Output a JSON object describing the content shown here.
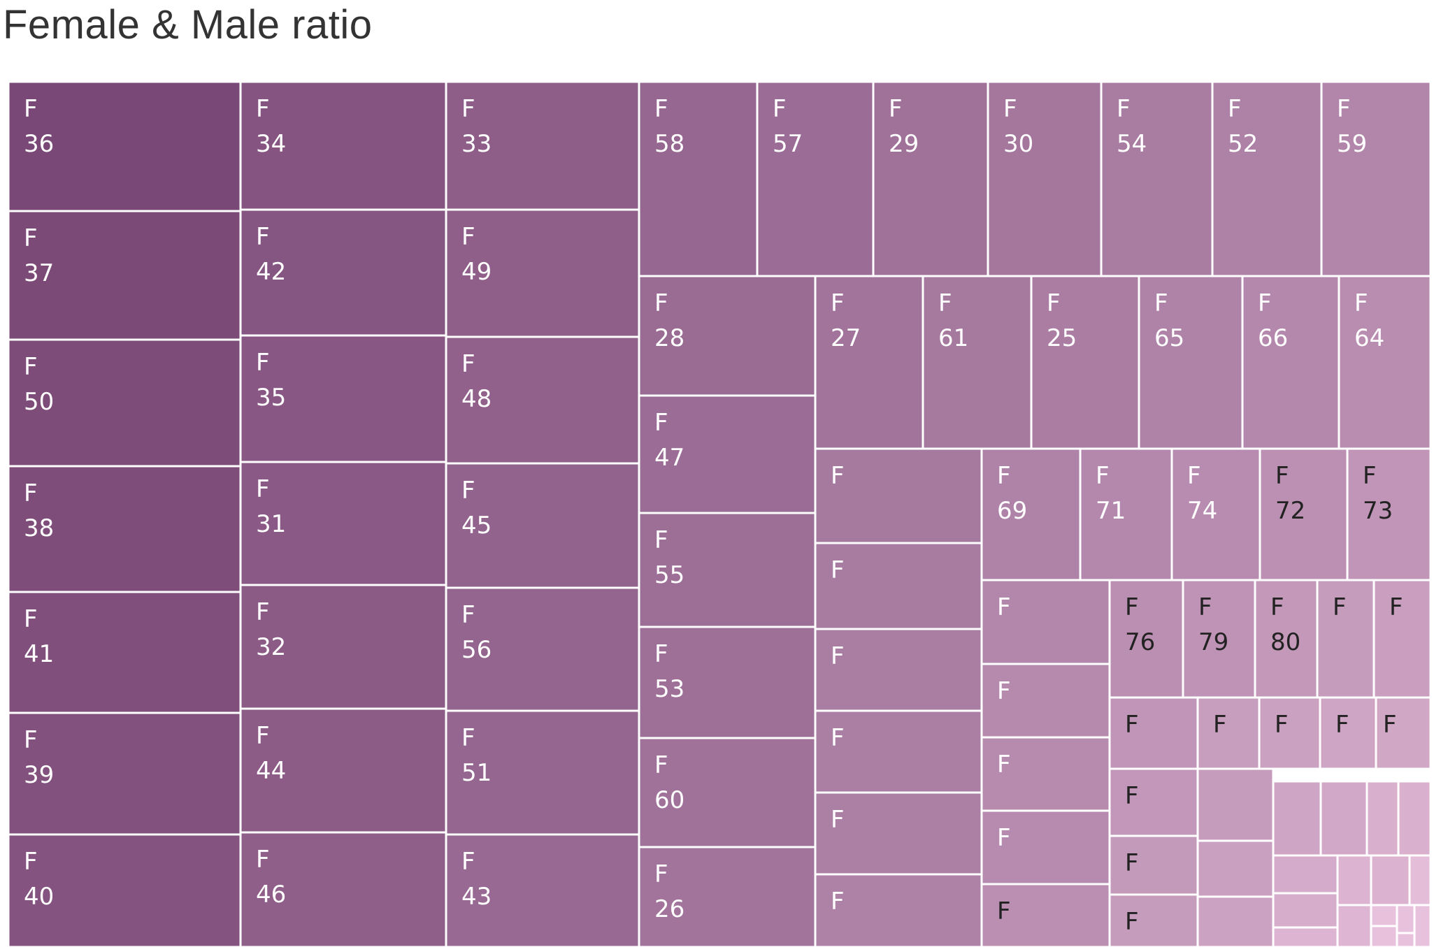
{
  "title": "Female & Male ratio",
  "chart_data": {
    "type": "treemap",
    "title": "Female & Male ratio",
    "color_scale": {
      "dark": "#7a4876",
      "light": "#e8c1dc",
      "label_dark": "#ffffff",
      "label_light": "#222222"
    },
    "cells": [
      {
        "group": "F",
        "age": 36
      },
      {
        "group": "F",
        "age": 37
      },
      {
        "group": "F",
        "age": 50
      },
      {
        "group": "F",
        "age": 38
      },
      {
        "group": "F",
        "age": 41
      },
      {
        "group": "F",
        "age": 39
      },
      {
        "group": "F",
        "age": 40
      },
      {
        "group": "F",
        "age": 34
      },
      {
        "group": "F",
        "age": 42
      },
      {
        "group": "F",
        "age": 35
      },
      {
        "group": "F",
        "age": 31
      },
      {
        "group": "F",
        "age": 32
      },
      {
        "group": "F",
        "age": 44
      },
      {
        "group": "F",
        "age": 46
      },
      {
        "group": "F",
        "age": 33
      },
      {
        "group": "F",
        "age": 49
      },
      {
        "group": "F",
        "age": 48
      },
      {
        "group": "F",
        "age": 45
      },
      {
        "group": "F",
        "age": 56
      },
      {
        "group": "F",
        "age": 51
      },
      {
        "group": "F",
        "age": 43
      },
      {
        "group": "F",
        "age": 58
      },
      {
        "group": "F",
        "age": 57
      },
      {
        "group": "F",
        "age": 29
      },
      {
        "group": "F",
        "age": 30
      },
      {
        "group": "F",
        "age": 54
      },
      {
        "group": "F",
        "age": 52
      },
      {
        "group": "F",
        "age": 59
      },
      {
        "group": "F",
        "age": 28
      },
      {
        "group": "F",
        "age": 47
      },
      {
        "group": "F",
        "age": 55
      },
      {
        "group": "F",
        "age": 53
      },
      {
        "group": "F",
        "age": 60
      },
      {
        "group": "F",
        "age": 26
      },
      {
        "group": "F",
        "age": 27
      },
      {
        "group": "F",
        "age": 61
      },
      {
        "group": "F",
        "age": 25
      },
      {
        "group": "F",
        "age": 65
      },
      {
        "group": "F",
        "age": 66
      },
      {
        "group": "F",
        "age": 64
      },
      {
        "group": "F",
        "age": null
      },
      {
        "group": "F",
        "age": null
      },
      {
        "group": "F",
        "age": null
      },
      {
        "group": "F",
        "age": null
      },
      {
        "group": "F",
        "age": null
      },
      {
        "group": "F",
        "age": null
      },
      {
        "group": "F",
        "age": 69
      },
      {
        "group": "F",
        "age": 71
      },
      {
        "group": "F",
        "age": 74
      },
      {
        "group": "F",
        "age": 72
      },
      {
        "group": "F",
        "age": 73
      },
      {
        "group": "F",
        "age": null
      },
      {
        "group": "F",
        "age": null
      },
      {
        "group": "F",
        "age": null
      },
      {
        "group": "F",
        "age": null
      },
      {
        "group": "F",
        "age": null
      },
      {
        "group": "F",
        "age": 76
      },
      {
        "group": "F",
        "age": 79
      },
      {
        "group": "F",
        "age": 80
      },
      {
        "group": "F",
        "age": null
      },
      {
        "group": "F",
        "age": null
      },
      {
        "group": "F",
        "age": null
      },
      {
        "group": "F",
        "age": null
      },
      {
        "group": "F",
        "age": null
      },
      {
        "group": "F",
        "age": null
      },
      {
        "group": "F",
        "age": null
      },
      {
        "group": "F",
        "age": null
      },
      {
        "group": "F",
        "age": null
      },
      {
        "group": "F",
        "age": null
      },
      {
        "group": "",
        "age": null
      },
      {
        "group": "",
        "age": null
      },
      {
        "group": "",
        "age": null
      },
      {
        "group": "",
        "age": null
      },
      {
        "group": "",
        "age": null
      },
      {
        "group": "",
        "age": null
      },
      {
        "group": "",
        "age": null
      },
      {
        "group": "",
        "age": null
      },
      {
        "group": "",
        "age": null
      },
      {
        "group": "",
        "age": null
      },
      {
        "group": "",
        "age": null
      },
      {
        "group": "",
        "age": null
      },
      {
        "group": "",
        "age": null
      },
      {
        "group": "",
        "age": null
      },
      {
        "group": "",
        "age": null
      },
      {
        "group": "",
        "age": null
      },
      {
        "group": "",
        "age": null
      },
      {
        "group": "",
        "age": null
      },
      {
        "group": "",
        "age": null
      },
      {
        "group": "",
        "age": null
      },
      {
        "group": "",
        "age": null
      },
      {
        "group": "",
        "age": null
      }
    ]
  }
}
